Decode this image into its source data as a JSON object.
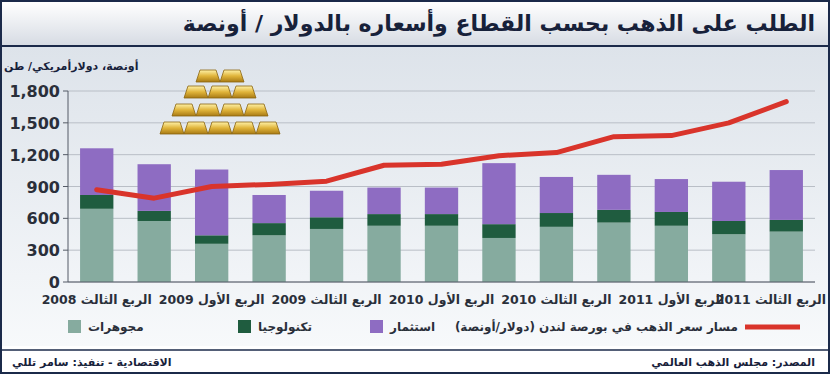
{
  "chart_data": {
    "type": "bar",
    "title": "الطلب على الذهب بحسب القطاع وأسعاره بالدولار / أونصة",
    "y_label": "أونصة، دولارأمريكي/ طن",
    "source": "المصدر: مجلس الذهب العالمي",
    "credit": "الاقتصادية - تنفيذ: سامر تللي",
    "categories": [
      "الربع الثالث 2008",
      null,
      "الربع الأول 2009",
      null,
      "الربع الثالث 2009",
      null,
      "الربع الأول 2010",
      null,
      "الربع الثالث 2010",
      null,
      "الربع الأول 2011",
      null,
      "الربع الثالث 2011"
    ],
    "stacked": true,
    "grid": true,
    "legend": "bottom",
    "ylim": [
      0,
      1800
    ],
    "yticks": [
      0,
      300,
      600,
      900,
      {
        "value": 1200,
        "label": "1,200"
      },
      {
        "value": 1500,
        "label": "1,500"
      },
      {
        "value": 1800,
        "label": "1,800"
      }
    ],
    "series": [
      {
        "name": "مجوهرات",
        "type": "bar",
        "color": "#86ab9f",
        "values": [
          690,
          575,
          360,
          440,
          500,
          530,
          530,
          415,
          520,
          560,
          530,
          450,
          475
        ]
      },
      {
        "name": "تكنولوجيا",
        "type": "bar",
        "color": "#1f5c3f",
        "values": [
          130,
          95,
          80,
          115,
          110,
          110,
          110,
          130,
          130,
          120,
          130,
          125,
          110
        ]
      },
      {
        "name": "استثمار",
        "type": "bar",
        "color": "#8e6cc2",
        "values": [
          440,
          440,
          620,
          265,
          250,
          250,
          250,
          575,
          340,
          330,
          310,
          370,
          470
        ]
      },
      {
        "name": "مسار سعر الذهب في بورصة لندن (دولار/أونصة)",
        "type": "line",
        "color": "#d9342b",
        "values": [
          870,
          790,
          900,
          920,
          950,
          1100,
          1110,
          1190,
          1220,
          1370,
          1380,
          1500,
          1700
        ]
      }
    ]
  }
}
